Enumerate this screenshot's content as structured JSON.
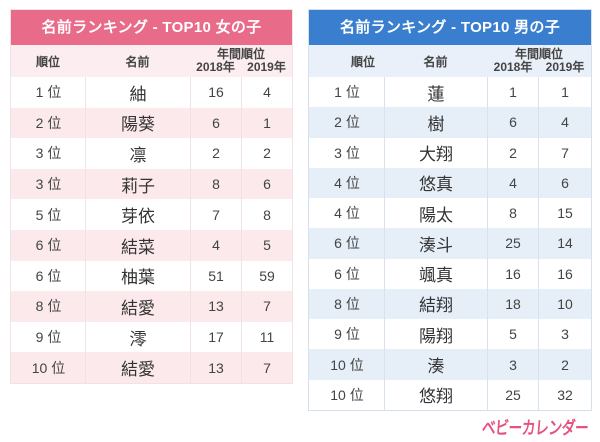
{
  "girls": {
    "title": "名前ランキング - TOP10 女の子",
    "headers": {
      "rank": "順位",
      "name": "名前",
      "annual": "年間順位",
      "y2018": "2018年",
      "y2019": "2019年"
    },
    "rows": [
      {
        "rank": "1 位",
        "name": "紬",
        "y2018": "16",
        "y2019": "4"
      },
      {
        "rank": "2 位",
        "name": "陽葵",
        "y2018": "6",
        "y2019": "1"
      },
      {
        "rank": "3 位",
        "name": "凛",
        "y2018": "2",
        "y2019": "2"
      },
      {
        "rank": "3 位",
        "name": "莉子",
        "y2018": "8",
        "y2019": "6"
      },
      {
        "rank": "5 位",
        "name": "芽依",
        "y2018": "7",
        "y2019": "8"
      },
      {
        "rank": "6 位",
        "name": "結菜",
        "y2018": "4",
        "y2019": "5"
      },
      {
        "rank": "6 位",
        "name": "柚葉",
        "y2018": "51",
        "y2019": "59"
      },
      {
        "rank": "8 位",
        "name": "結愛",
        "y2018": "13",
        "y2019": "7"
      },
      {
        "rank": "9 位",
        "name": "澪",
        "y2018": "17",
        "y2019": "11"
      },
      {
        "rank": "10 位",
        "name": "結愛",
        "y2018": "13",
        "y2019": "7"
      }
    ]
  },
  "boys": {
    "title": "名前ランキング - TOP10 男の子",
    "headers": {
      "rank": "順位",
      "name": "名前",
      "annual": "年間順位",
      "y2018": "2018年",
      "y2019": "2019年"
    },
    "rows": [
      {
        "rank": "1 位",
        "name": "蓮",
        "y2018": "1",
        "y2019": "1"
      },
      {
        "rank": "2 位",
        "name": "樹",
        "y2018": "6",
        "y2019": "4"
      },
      {
        "rank": "3 位",
        "name": "大翔",
        "y2018": "2",
        "y2019": "7"
      },
      {
        "rank": "4 位",
        "name": "悠真",
        "y2018": "4",
        "y2019": "6"
      },
      {
        "rank": "4 位",
        "name": "陽太",
        "y2018": "8",
        "y2019": "15"
      },
      {
        "rank": "6 位",
        "name": "湊斗",
        "y2018": "25",
        "y2019": "14"
      },
      {
        "rank": "6 位",
        "name": "颯真",
        "y2018": "16",
        "y2019": "16"
      },
      {
        "rank": "8 位",
        "name": "結翔",
        "y2018": "18",
        "y2019": "10"
      },
      {
        "rank": "9 位",
        "name": "陽翔",
        "y2018": "5",
        "y2019": "3"
      },
      {
        "rank": "10 位",
        "name": "湊",
        "y2018": "3",
        "y2019": "2"
      },
      {
        "rank": "10 位",
        "name": "悠翔",
        "y2018": "25",
        "y2019": "32"
      }
    ]
  },
  "logo": {
    "text": "ベビーカレンダー"
  },
  "colors": {
    "girls_accent": "#e96b8a",
    "girls_row_alt": "#fbe9ec",
    "boys_accent": "#3a7fcf",
    "boys_row_alt": "#e6eef8",
    "logo": "#e5527e"
  }
}
